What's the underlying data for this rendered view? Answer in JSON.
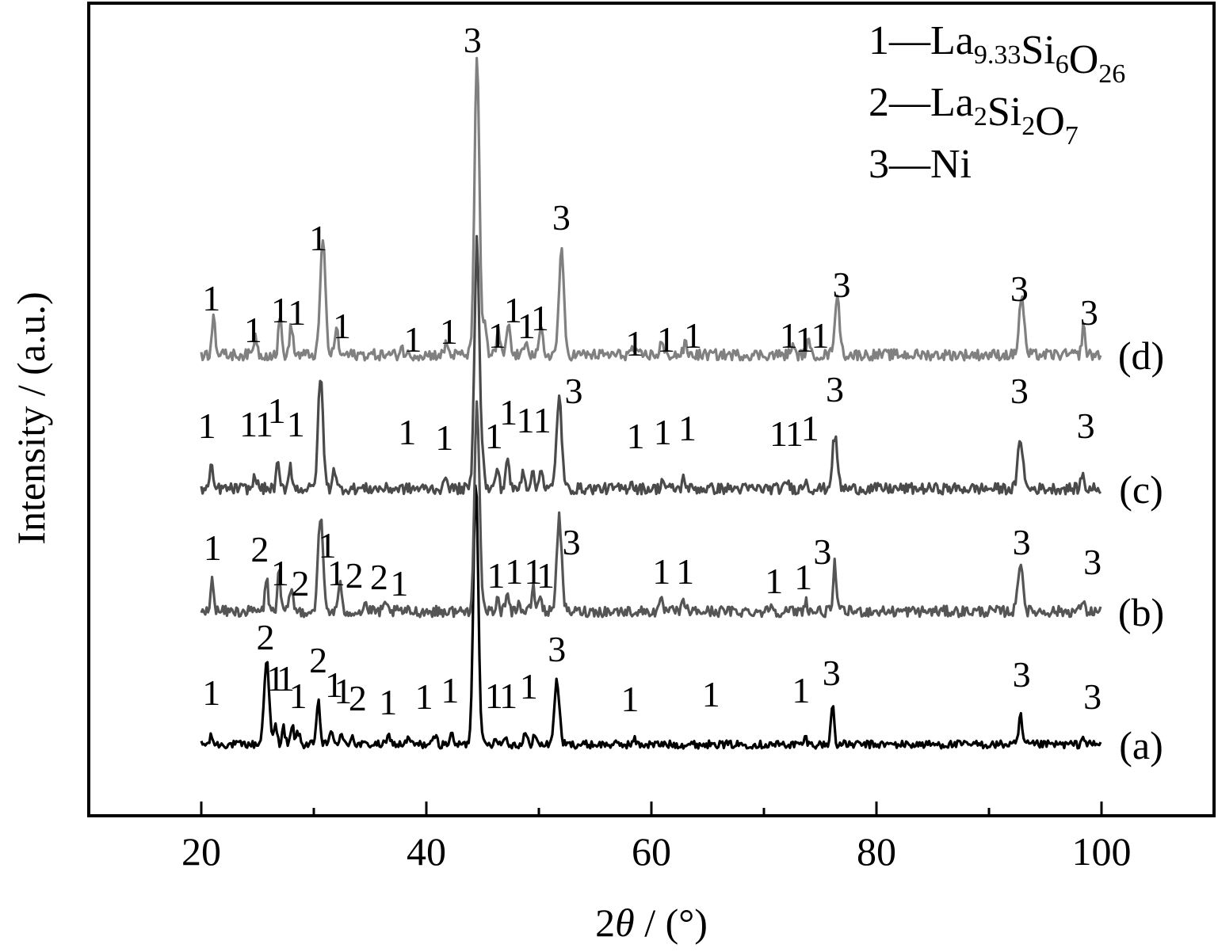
{
  "chart_data": {
    "type": "line",
    "title": "",
    "xlabel_prefix": "2",
    "xlabel_symbol": "θ",
    "xlabel_suffix": " / (°)",
    "ylabel": "Intensity / (a.u.)",
    "xlim": [
      10,
      110
    ],
    "x_ticks": [
      20,
      40,
      60,
      80,
      100
    ],
    "y_ticks_shown": false,
    "grid": false,
    "legend_position": "top-right",
    "legend": [
      {
        "number": "1",
        "dash": "—",
        "parts": [
          [
            "La",
            ""
          ],
          [
            "9.33",
            "sub"
          ],
          [
            "Si",
            ""
          ],
          [
            "6",
            "sub"
          ],
          [
            "O",
            ""
          ],
          [
            "26",
            "sub"
          ]
        ]
      },
      {
        "number": "2",
        "dash": "—",
        "parts": [
          [
            "La",
            ""
          ],
          [
            "2",
            "sub"
          ],
          [
            "Si",
            ""
          ],
          [
            "2",
            "sub"
          ],
          [
            "O",
            ""
          ],
          [
            "7",
            "sub"
          ]
        ]
      },
      {
        "number": "3",
        "dash": "—",
        "parts": [
          [
            "Ni",
            ""
          ]
        ]
      }
    ],
    "series": [
      {
        "name": "(a)",
        "color": "#000000",
        "baseline": 0,
        "noise": 5,
        "peaks": [
          [
            20.9,
            10
          ],
          [
            25.8,
            108
          ],
          [
            26.6,
            24
          ],
          [
            27.3,
            22
          ],
          [
            28.1,
            22
          ],
          [
            28.6,
            16
          ],
          [
            30.4,
            58
          ],
          [
            31.5,
            18
          ],
          [
            32.4,
            14
          ],
          [
            33.4,
            12
          ],
          [
            36.7,
            12
          ],
          [
            38.4,
            8
          ],
          [
            40.8,
            12
          ],
          [
            42.2,
            14
          ],
          [
            44.4,
            335
          ],
          [
            46.2,
            10
          ],
          [
            47.0,
            10
          ],
          [
            48.8,
            14
          ],
          [
            49.6,
            12
          ],
          [
            51.6,
            80
          ],
          [
            58.5,
            6
          ],
          [
            65.5,
            6
          ],
          [
            73.7,
            8
          ],
          [
            76.1,
            52
          ],
          [
            92.8,
            38
          ],
          [
            98.4,
            10
          ]
        ]
      },
      {
        "name": "(b)",
        "color": "#555555",
        "baseline": 168,
        "noise": 7,
        "peaks": [
          [
            21.0,
            40
          ],
          [
            25.8,
            42
          ],
          [
            26.9,
            50
          ],
          [
            28.0,
            32
          ],
          [
            30.6,
            118
          ],
          [
            32.3,
            36
          ],
          [
            34.6,
            10
          ],
          [
            36.4,
            8
          ],
          [
            44.5,
            262
          ],
          [
            46.3,
            16
          ],
          [
            47.2,
            30
          ],
          [
            48.2,
            12
          ],
          [
            49.5,
            30
          ],
          [
            50.1,
            22
          ],
          [
            51.8,
            118
          ],
          [
            60.9,
            12
          ],
          [
            62.9,
            14
          ],
          [
            70.6,
            10
          ],
          [
            73.7,
            14
          ],
          [
            76.3,
            60
          ],
          [
            92.8,
            64
          ],
          [
            98.3,
            14
          ]
        ]
      },
      {
        "name": "(c)",
        "color": "#4a4a4a",
        "baseline": 323,
        "noise": 7,
        "peaks": [
          [
            20.9,
            26
          ],
          [
            24.8,
            18
          ],
          [
            26.8,
            30
          ],
          [
            27.9,
            32
          ],
          [
            30.6,
            140
          ],
          [
            31.8,
            28
          ],
          [
            41.8,
            16
          ],
          [
            44.5,
            315
          ],
          [
            45.0,
            30
          ],
          [
            46.3,
            28
          ],
          [
            47.2,
            42
          ],
          [
            48.6,
            26
          ],
          [
            49.4,
            22
          ],
          [
            50.2,
            30
          ],
          [
            51.8,
            118
          ],
          [
            58.2,
            10
          ],
          [
            61.0,
            12
          ],
          [
            62.9,
            14
          ],
          [
            72.1,
            10
          ],
          [
            73.7,
            12
          ],
          [
            76.3,
            66
          ],
          [
            92.8,
            64
          ],
          [
            98.3,
            18
          ]
        ]
      },
      {
        "name": "(d)",
        "color": "#808080",
        "baseline": 492,
        "noise": 7,
        "peaks": [
          [
            21.1,
            56
          ],
          [
            24.8,
            26
          ],
          [
            27.0,
            48
          ],
          [
            28.0,
            38
          ],
          [
            30.8,
            148
          ],
          [
            32.0,
            36
          ],
          [
            37.8,
            10
          ],
          [
            41.8,
            16
          ],
          [
            44.5,
            370
          ],
          [
            45.2,
            44
          ],
          [
            46.4,
            30
          ],
          [
            47.3,
            42
          ],
          [
            48.9,
            22
          ],
          [
            50.2,
            34
          ],
          [
            52.0,
            130
          ],
          [
            58.3,
            10
          ],
          [
            60.9,
            16
          ],
          [
            63.0,
            14
          ],
          [
            72.5,
            12
          ],
          [
            73.9,
            18
          ],
          [
            76.5,
            72
          ],
          [
            92.9,
            74
          ],
          [
            98.4,
            36
          ]
        ]
      }
    ],
    "peak_labels": {
      "a": [
        {
          "x": 20.9,
          "y": 50,
          "t": "1"
        },
        {
          "x": 25.7,
          "y": 120,
          "t": "2"
        },
        {
          "x": 26.6,
          "y": 68,
          "t": "1"
        },
        {
          "x": 27.5,
          "y": 68,
          "t": "1"
        },
        {
          "x": 28.6,
          "y": 46,
          "t": "1"
        },
        {
          "x": 30.4,
          "y": 91,
          "t": "2"
        },
        {
          "x": 31.8,
          "y": 60,
          "t": "1"
        },
        {
          "x": 32.6,
          "y": 52,
          "t": "1"
        },
        {
          "x": 33.9,
          "y": 43,
          "t": "2"
        },
        {
          "x": 36.6,
          "y": 38,
          "t": "1"
        },
        {
          "x": 39.8,
          "y": 45,
          "t": "1"
        },
        {
          "x": 42.1,
          "y": 53,
          "t": "1"
        },
        {
          "x": 46.0,
          "y": 46,
          "t": "1"
        },
        {
          "x": 47.3,
          "y": 46,
          "t": "1"
        },
        {
          "x": 49.1,
          "y": 58,
          "t": "1"
        },
        {
          "x": 51.6,
          "y": 105,
          "t": "3"
        },
        {
          "x": 58.1,
          "y": 42,
          "t": "1"
        },
        {
          "x": 65.3,
          "y": 48,
          "t": "1"
        },
        {
          "x": 73.3,
          "y": 53,
          "t": "1"
        },
        {
          "x": 76.0,
          "y": 75,
          "t": "3"
        },
        {
          "x": 92.9,
          "y": 73,
          "t": "3"
        },
        {
          "x": 99.2,
          "y": 45,
          "t": "3"
        }
      ],
      "b": [
        {
          "x": 21.0,
          "y": 233,
          "t": "1"
        },
        {
          "x": 25.2,
          "y": 231,
          "t": "2"
        },
        {
          "x": 27.0,
          "y": 201,
          "t": "1"
        },
        {
          "x": 28.8,
          "y": 188,
          "t": "2"
        },
        {
          "x": 31.2,
          "y": 236,
          "t": "1"
        },
        {
          "x": 32.0,
          "y": 201,
          "t": "1"
        },
        {
          "x": 33.6,
          "y": 198,
          "t": "2"
        },
        {
          "x": 35.8,
          "y": 196,
          "t": "2"
        },
        {
          "x": 37.6,
          "y": 188,
          "t": "1"
        },
        {
          "x": 46.2,
          "y": 198,
          "t": "1"
        },
        {
          "x": 47.8,
          "y": 203,
          "t": "1"
        },
        {
          "x": 49.5,
          "y": 203,
          "t": "1"
        },
        {
          "x": 50.6,
          "y": 198,
          "t": "1"
        },
        {
          "x": 52.9,
          "y": 240,
          "t": "3"
        },
        {
          "x": 60.9,
          "y": 203,
          "t": "1"
        },
        {
          "x": 63.0,
          "y": 203,
          "t": "1"
        },
        {
          "x": 70.9,
          "y": 191,
          "t": "1"
        },
        {
          "x": 73.5,
          "y": 196,
          "t": "1"
        },
        {
          "x": 75.2,
          "y": 228,
          "t": "3"
        },
        {
          "x": 92.9,
          "y": 240,
          "t": "3"
        },
        {
          "x": 99.2,
          "y": 215,
          "t": "3"
        }
      ],
      "c": [
        {
          "x": 20.5,
          "y": 387,
          "t": "1"
        },
        {
          "x": 24.2,
          "y": 389,
          "t": "1"
        },
        {
          "x": 25.6,
          "y": 389,
          "t": "1"
        },
        {
          "x": 26.7,
          "y": 406,
          "t": "1"
        },
        {
          "x": 28.4,
          "y": 389,
          "t": "1"
        },
        {
          "x": 38.3,
          "y": 379,
          "t": "1"
        },
        {
          "x": 41.6,
          "y": 372,
          "t": "1"
        },
        {
          "x": 46.0,
          "y": 374,
          "t": "1"
        },
        {
          "x": 47.3,
          "y": 404,
          "t": "1"
        },
        {
          "x": 48.8,
          "y": 394,
          "t": "1"
        },
        {
          "x": 50.3,
          "y": 394,
          "t": "1"
        },
        {
          "x": 53.1,
          "y": 431,
          "t": "3"
        },
        {
          "x": 58.6,
          "y": 374,
          "t": "1"
        },
        {
          "x": 61.0,
          "y": 379,
          "t": "1"
        },
        {
          "x": 63.2,
          "y": 384,
          "t": "1"
        },
        {
          "x": 71.3,
          "y": 377,
          "t": "1"
        },
        {
          "x": 72.7,
          "y": 377,
          "t": "1"
        },
        {
          "x": 74.1,
          "y": 384,
          "t": "1"
        },
        {
          "x": 76.3,
          "y": 433,
          "t": "3"
        },
        {
          "x": 92.7,
          "y": 431,
          "t": "3"
        },
        {
          "x": 98.6,
          "y": 387,
          "t": "3"
        }
      ],
      "d": [
        {
          "x": 20.9,
          "y": 548,
          "t": "1"
        },
        {
          "x": 24.6,
          "y": 508,
          "t": "1"
        },
        {
          "x": 27.0,
          "y": 533,
          "t": "1"
        },
        {
          "x": 28.5,
          "y": 530,
          "t": "1"
        },
        {
          "x": 30.4,
          "y": 624,
          "t": "1"
        },
        {
          "x": 32.5,
          "y": 513,
          "t": "1"
        },
        {
          "x": 38.8,
          "y": 496,
          "t": "1"
        },
        {
          "x": 42.0,
          "y": 506,
          "t": "1"
        },
        {
          "x": 46.3,
          "y": 501,
          "t": "1"
        },
        {
          "x": 47.7,
          "y": 533,
          "t": "1"
        },
        {
          "x": 48.9,
          "y": 513,
          "t": "1"
        },
        {
          "x": 50.1,
          "y": 523,
          "t": "1"
        },
        {
          "x": 52.0,
          "y": 650,
          "t": "3"
        },
        {
          "x": 58.5,
          "y": 491,
          "t": "1"
        },
        {
          "x": 61.3,
          "y": 496,
          "t": "1"
        },
        {
          "x": 63.7,
          "y": 501,
          "t": "1"
        },
        {
          "x": 72.2,
          "y": 501,
          "t": "1"
        },
        {
          "x": 73.6,
          "y": 496,
          "t": "1"
        },
        {
          "x": 75.0,
          "y": 501,
          "t": "1"
        },
        {
          "x": 76.9,
          "y": 565,
          "t": "3"
        },
        {
          "x": 92.7,
          "y": 560,
          "t": "3"
        },
        {
          "x": 98.9,
          "y": 530,
          "t": "3"
        }
      ],
      "main": [
        {
          "x": 44.1,
          "y": 874,
          "t": "3"
        }
      ]
    }
  }
}
